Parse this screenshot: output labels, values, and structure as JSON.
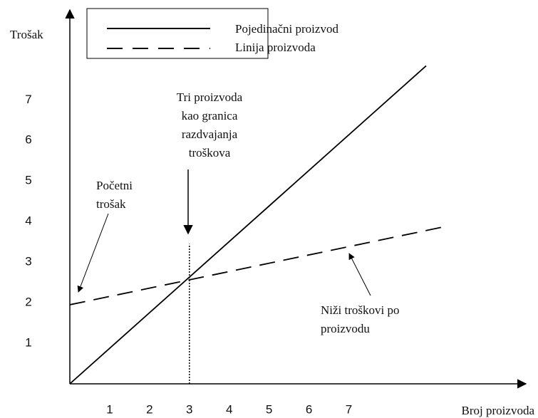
{
  "chart_data": {
    "type": "line",
    "xlabel": "Broj proizvoda",
    "ylabel": "Trošak",
    "xlim": [
      0,
      11.3
    ],
    "ylim": [
      0,
      9.2
    ],
    "xticks": [
      1,
      2,
      3,
      4,
      5,
      6,
      7
    ],
    "yticks": [
      1,
      2,
      3,
      4,
      5,
      6,
      7
    ],
    "grid": false,
    "legend": "top",
    "series": [
      {
        "name": "Pojedinačni proizvod",
        "color": "#000000",
        "style": "solid",
        "x": [
          0,
          8.94
        ],
        "values": [
          0,
          7.84
        ]
      },
      {
        "name": "Linija proizvoda",
        "color": "#000000",
        "style": "dashed",
        "x": [
          0,
          9.43
        ],
        "values": [
          1.95,
          3.88
        ]
      }
    ],
    "marker": {
      "x": 3,
      "top": 3.45
    },
    "annotations": [
      {
        "lines": [
          "Početni",
          "trošak"
        ]
      },
      {
        "lines": [
          "Tri proizvoda",
          "kao granica",
          "razdvajanja",
          "troškova"
        ]
      },
      {
        "lines": [
          "Niži troškovi po",
          "proizvodu"
        ]
      }
    ]
  }
}
